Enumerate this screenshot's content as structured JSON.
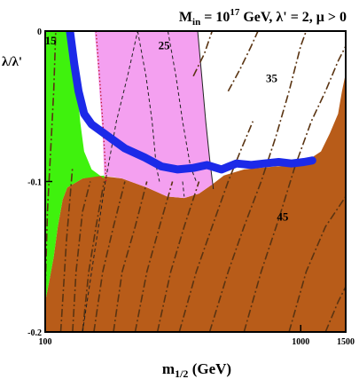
{
  "chart_data": {
    "type": "contour",
    "title": "M_in = 10^17 GeV,  λ' = 2, μ > 0",
    "title_parts": {
      "lhs": "M",
      "lhs_sub": "in",
      "eq": " = 10",
      "exp": "17",
      "rest": " GeV,  λ' = 2, μ > 0"
    },
    "xlabel": "m_{1/2} (GeV)",
    "xlabel_parts": {
      "main": "m",
      "sub": "1/2",
      "rest": " (GeV)"
    },
    "ylabel": "λ/λ'",
    "xscale": "log",
    "xlim": [
      100,
      1500
    ],
    "ylim": [
      -0.2,
      0
    ],
    "xticks": [
      {
        "value": 100,
        "label": "100"
      },
      {
        "value": 1000,
        "label": "1000"
      },
      {
        "value": 1500,
        "label": "1500"
      }
    ],
    "yticks": [
      {
        "value": 0,
        "label": "0"
      },
      {
        "value": -0.1,
        "label": "-0.1"
      },
      {
        "value": -0.2,
        "label": "-0.2"
      }
    ],
    "contour_labels": [
      {
        "text": "15",
        "x": 105,
        "y": -0.006
      },
      {
        "text": "25",
        "x": 292,
        "y": -0.009
      },
      {
        "text": "35",
        "x": 770,
        "y": -0.031
      },
      {
        "text": "45",
        "x": 850,
        "y": -0.123
      }
    ],
    "regions": [
      {
        "name": "stau_lsp",
        "color": "#b85c19",
        "boundary": [
          [
            100,
            -0.2
          ],
          [
            100,
            -0.18
          ],
          [
            104,
            -0.165
          ],
          [
            108,
            -0.15
          ],
          [
            112,
            -0.13
          ],
          [
            117,
            -0.112
          ],
          [
            122,
            -0.104
          ],
          [
            140,
            -0.098
          ],
          [
            160,
            -0.096
          ],
          [
            200,
            -0.098
          ],
          [
            250,
            -0.104
          ],
          [
            300,
            -0.11
          ],
          [
            350,
            -0.111
          ],
          [
            400,
            -0.108
          ],
          [
            450,
            -0.102
          ],
          [
            500,
            -0.096
          ],
          [
            600,
            -0.092
          ],
          [
            800,
            -0.09
          ],
          [
            1000,
            -0.089
          ],
          [
            1200,
            -0.08
          ],
          [
            1300,
            -0.068
          ],
          [
            1400,
            -0.055
          ],
          [
            1450,
            -0.04
          ],
          [
            1500,
            -0.028
          ],
          [
            1500,
            -0.2
          ]
        ]
      },
      {
        "name": "green",
        "color": "#3ff20d",
        "boundary": [
          [
            100,
            0
          ],
          [
            129,
            0
          ],
          [
            131,
            -0.02
          ],
          [
            134,
            -0.04
          ],
          [
            137,
            -0.06
          ],
          [
            142,
            -0.08
          ],
          [
            152,
            -0.092
          ],
          [
            170,
            -0.098
          ],
          [
            170,
            -0.096
          ],
          [
            140,
            -0.098
          ],
          [
            122,
            -0.104
          ],
          [
            117,
            -0.112
          ],
          [
            112,
            -0.13
          ],
          [
            108,
            -0.15
          ],
          [
            104,
            -0.165
          ],
          [
            100,
            -0.18
          ]
        ]
      },
      {
        "name": "pink",
        "color": "#f4a0f0",
        "boundary": [
          [
            156,
            0
          ],
          [
            395,
            0
          ],
          [
            410,
            -0.03
          ],
          [
            425,
            -0.06
          ],
          [
            440,
            -0.085
          ],
          [
            455,
            -0.105
          ],
          [
            450,
            -0.102
          ],
          [
            400,
            -0.108
          ],
          [
            350,
            -0.111
          ],
          [
            300,
            -0.11
          ],
          [
            250,
            -0.104
          ],
          [
            200,
            -0.098
          ],
          [
            170,
            -0.096
          ],
          [
            168,
            -0.07
          ],
          [
            163,
            -0.04
          ],
          [
            160,
            -0.02
          ]
        ]
      }
    ],
    "blue_band": [
      [
        125,
        0
      ],
      [
        130,
        -0.022
      ],
      [
        135,
        -0.04
      ],
      [
        142,
        -0.055
      ],
      [
        152,
        -0.062
      ],
      [
        170,
        -0.068
      ],
      [
        205,
        -0.078
      ],
      [
        245,
        -0.084
      ],
      [
        285,
        -0.09
      ],
      [
        330,
        -0.092
      ],
      [
        380,
        -0.091
      ],
      [
        430,
        -0.089
      ],
      [
        490,
        -0.092
      ],
      [
        560,
        -0.088
      ],
      [
        640,
        -0.089
      ],
      [
        720,
        -0.088
      ],
      [
        820,
        -0.087
      ],
      [
        920,
        -0.088
      ],
      [
        1030,
        -0.087
      ],
      [
        1110,
        -0.086
      ]
    ],
    "dashdot_lines": [
      [
        [
          99,
          -0.2
        ],
        [
          102,
          -0.12
        ],
        [
          105,
          -0.08
        ],
        [
          108,
          -0.04
        ],
        [
          110,
          0
        ]
      ],
      [
        [
          115,
          -0.2
        ],
        [
          121,
          -0.14
        ],
        [
          128,
          -0.09
        ]
      ],
      [
        [
          128,
          -0.2
        ],
        [
          132,
          -0.16
        ],
        [
          140,
          -0.12
        ],
        [
          150,
          -0.1
        ]
      ],
      [
        [
          140,
          -0.2
        ],
        [
          148,
          -0.16
        ],
        [
          158,
          -0.13
        ],
        [
          170,
          -0.1
        ]
      ],
      [
        [
          155,
          -0.2
        ],
        [
          168,
          -0.16
        ],
        [
          185,
          -0.13
        ],
        [
          205,
          -0.1
        ]
      ],
      [
        [
          185,
          -0.2
        ],
        [
          200,
          -0.16
        ],
        [
          225,
          -0.13
        ],
        [
          250,
          -0.1
        ]
      ],
      [
        [
          225,
          -0.2
        ],
        [
          250,
          -0.16
        ],
        [
          280,
          -0.13
        ],
        [
          315,
          -0.1
        ]
      ],
      [
        [
          275,
          -0.2
        ],
        [
          310,
          -0.16
        ],
        [
          350,
          -0.13
        ],
        [
          400,
          -0.1
        ]
      ],
      [
        [
          335,
          -0.2
        ],
        [
          390,
          -0.16
        ],
        [
          450,
          -0.13
        ],
        [
          520,
          -0.1
        ],
        [
          580,
          -0.08
        ],
        [
          650,
          -0.06
        ]
      ],
      [
        [
          440,
          -0.2
        ],
        [
          520,
          -0.16
        ],
        [
          600,
          -0.13
        ],
        [
          700,
          -0.1
        ],
        [
          800,
          -0.07
        ],
        [
          900,
          -0.04
        ],
        [
          1000,
          -0.01
        ],
        [
          1050,
          0
        ]
      ],
      [
        [
          600,
          -0.2
        ],
        [
          700,
          -0.16
        ],
        [
          820,
          -0.125
        ],
        [
          950,
          -0.09
        ],
        [
          1100,
          -0.06
        ],
        [
          1250,
          -0.04
        ],
        [
          1400,
          -0.02
        ],
        [
          1500,
          -0.01
        ]
      ],
      [
        [
          900,
          -0.2
        ],
        [
          1050,
          -0.16
        ],
        [
          1250,
          -0.13
        ],
        [
          1500,
          -0.11
        ]
      ],
      [
        [
          1250,
          -0.2
        ],
        [
          1400,
          -0.18
        ],
        [
          1500,
          -0.17
        ]
      ],
      [
        [
          520,
          -0.04
        ],
        [
          580,
          -0.025
        ],
        [
          640,
          -0.01
        ],
        [
          680,
          0
        ]
      ],
      [
        [
          380,
          -0.03
        ],
        [
          420,
          -0.015
        ],
        [
          450,
          0
        ]
      ]
    ],
    "dashed_lines": [
      [
        [
          140,
          -0.2
        ],
        [
          155,
          -0.15
        ],
        [
          172,
          -0.1
        ],
        [
          190,
          -0.06
        ],
        [
          210,
          -0.03
        ],
        [
          230,
          0
        ]
      ],
      [
        [
          230,
          0
        ],
        [
          248,
          -0.03
        ],
        [
          262,
          -0.06
        ],
        [
          272,
          -0.09
        ],
        [
          280,
          -0.1
        ]
      ],
      [
        [
          302,
          0
        ],
        [
          325,
          -0.03
        ],
        [
          345,
          -0.06
        ],
        [
          370,
          -0.09
        ],
        [
          390,
          -0.1
        ]
      ],
      [
        [
          345,
          -0.1
        ],
        [
          350,
          -0.11
        ]
      ]
    ],
    "dotted_lines": [
      [
        [
          158,
          0
        ],
        [
          163,
          -0.03
        ],
        [
          168,
          -0.06
        ],
        [
          172,
          -0.09
        ],
        [
          173,
          -0.1
        ]
      ]
    ]
  }
}
